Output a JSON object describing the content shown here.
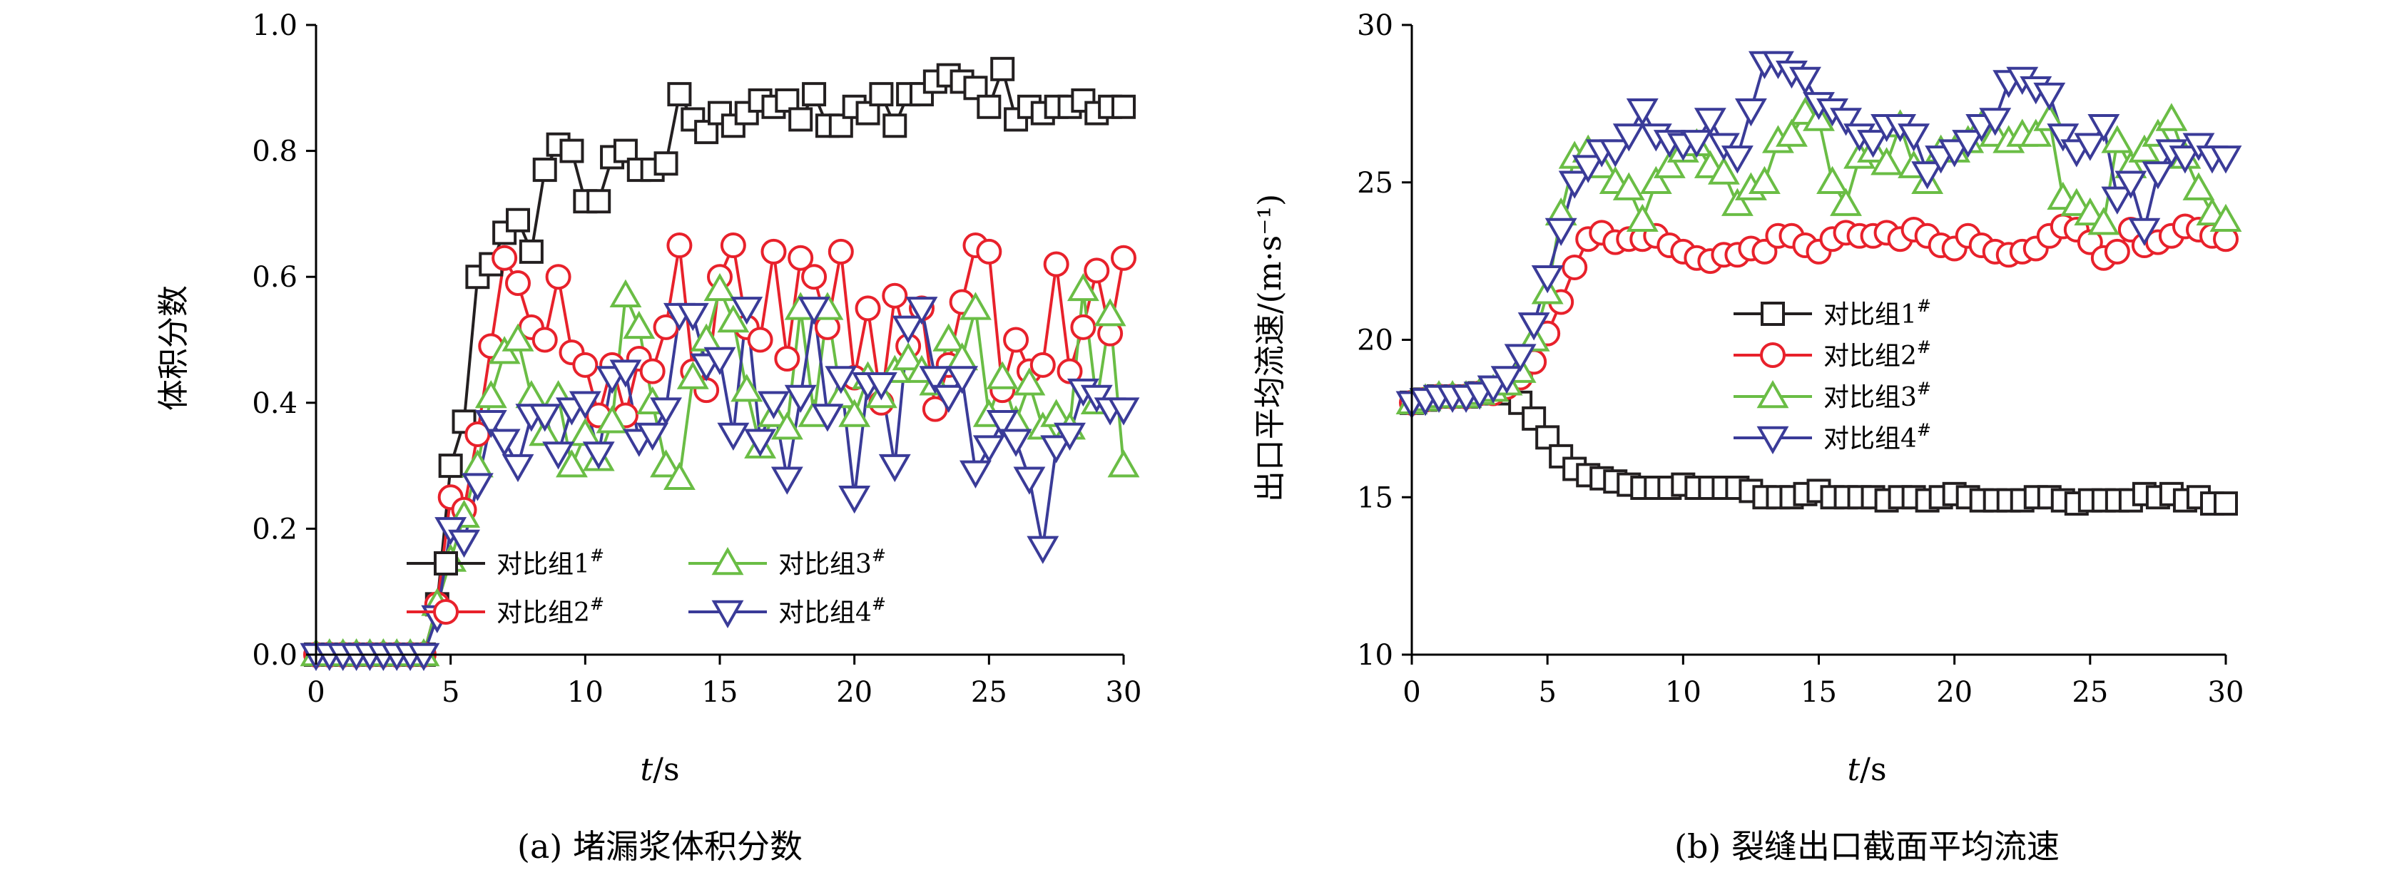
{
  "chart_data": [
    {
      "type": "line",
      "caption": "(a) 堵漏浆体积分数",
      "xlabel_italic": "t",
      "xlabel_unit": "/s",
      "ylabel": "体积分数",
      "xlim": [
        0,
        30
      ],
      "ylim": [
        0,
        1.0
      ],
      "xticks": [
        "0",
        "5",
        "10",
        "15",
        "20",
        "25",
        "30"
      ],
      "yticks": [
        "0.0",
        "0.2",
        "0.4",
        "0.6",
        "0.8",
        "1.0"
      ],
      "legend_position": "bottom-center",
      "grid": false,
      "series": [
        {
          "name": "对比组1",
          "sup": "#",
          "color": "#231f20",
          "marker": "square",
          "x": [
            0,
            0.5,
            1,
            1.5,
            2,
            2.5,
            3,
            3.5,
            4,
            4.5,
            5,
            5.5,
            6,
            6.5,
            7,
            7.5,
            8,
            8.5,
            9,
            9.5,
            10,
            10.5,
            11,
            11.5,
            12,
            12.5,
            13,
            13.5,
            14,
            14.5,
            15,
            15.5,
            16,
            16.5,
            17,
            17.5,
            18,
            18.5,
            19,
            19.5,
            20,
            20.5,
            21,
            21.5,
            22,
            22.5,
            23,
            23.5,
            24,
            24.5,
            25,
            25.5,
            26,
            26.5,
            27,
            27.5,
            28,
            28.5,
            29,
            29.5,
            30
          ],
          "y": [
            0,
            0,
            0,
            0,
            0,
            0,
            0,
            0,
            0,
            0.08,
            0.3,
            0.37,
            0.6,
            0.62,
            0.67,
            0.69,
            0.64,
            0.77,
            0.81,
            0.8,
            0.72,
            0.72,
            0.79,
            0.8,
            0.77,
            0.77,
            0.78,
            0.89,
            0.85,
            0.83,
            0.86,
            0.84,
            0.86,
            0.88,
            0.87,
            0.88,
            0.85,
            0.89,
            0.84,
            0.84,
            0.87,
            0.86,
            0.89,
            0.84,
            0.89,
            0.89,
            0.91,
            0.92,
            0.91,
            0.9,
            0.87,
            0.93,
            0.85,
            0.87,
            0.86,
            0.87,
            0.87,
            0.88,
            0.86,
            0.87,
            0.87
          ]
        },
        {
          "name": "对比组2",
          "sup": "#",
          "color": "#e8212b",
          "marker": "circle",
          "x": [
            0,
            0.5,
            1,
            1.5,
            2,
            2.5,
            3,
            3.5,
            4,
            4.5,
            5,
            5.5,
            6,
            6.5,
            7,
            7.5,
            8,
            8.5,
            9,
            9.5,
            10,
            10.5,
            11,
            11.5,
            12,
            12.5,
            13,
            13.5,
            14,
            14.5,
            15,
            15.5,
            16,
            16.5,
            17,
            17.5,
            18,
            18.5,
            19,
            19.5,
            20,
            20.5,
            21,
            21.5,
            22,
            22.5,
            23,
            23.5,
            24,
            24.5,
            25,
            25.5,
            26,
            26.5,
            27,
            27.5,
            28,
            28.5,
            29,
            29.5,
            30
          ],
          "y": [
            0,
            0,
            0,
            0,
            0,
            0,
            0,
            0,
            0,
            0.08,
            0.25,
            0.23,
            0.35,
            0.49,
            0.63,
            0.59,
            0.52,
            0.5,
            0.6,
            0.48,
            0.46,
            0.38,
            0.46,
            0.38,
            0.47,
            0.45,
            0.52,
            0.65,
            0.45,
            0.42,
            0.6,
            0.65,
            0.52,
            0.5,
            0.64,
            0.47,
            0.63,
            0.6,
            0.52,
            0.64,
            0.44,
            0.55,
            0.4,
            0.57,
            0.49,
            0.55,
            0.39,
            0.46,
            0.56,
            0.65,
            0.64,
            0.42,
            0.5,
            0.45,
            0.46,
            0.62,
            0.45,
            0.52,
            0.61,
            0.51,
            0.63
          ]
        },
        {
          "name": "对比组3",
          "sup": "#",
          "color": "#6abd45",
          "marker": "triangle-up",
          "x": [
            0,
            0.5,
            1,
            1.5,
            2,
            2.5,
            3,
            3.5,
            4,
            4.5,
            5,
            5.5,
            6,
            6.5,
            7,
            7.5,
            8,
            8.5,
            9,
            9.5,
            10,
            10.5,
            11,
            11.5,
            12,
            12.5,
            13,
            13.5,
            14,
            14.5,
            15,
            15.5,
            16,
            16.5,
            17,
            17.5,
            18,
            18.5,
            19,
            19.5,
            20,
            20.5,
            21,
            21.5,
            22,
            22.5,
            23,
            23.5,
            24,
            24.5,
            25,
            25.5,
            26,
            26.5,
            27,
            27.5,
            28,
            28.5,
            29,
            29.5,
            30
          ],
          "y": [
            0,
            0,
            0,
            0,
            0,
            0,
            0,
            0,
            0,
            0.08,
            0.15,
            0.22,
            0.3,
            0.41,
            0.48,
            0.5,
            0.41,
            0.35,
            0.41,
            0.3,
            0.35,
            0.31,
            0.37,
            0.57,
            0.52,
            0.4,
            0.3,
            0.28,
            0.44,
            0.5,
            0.58,
            0.53,
            0.42,
            0.33,
            0.38,
            0.36,
            0.55,
            0.38,
            0.55,
            0.41,
            0.38,
            0.44,
            0.41,
            0.45,
            0.47,
            0.45,
            0.43,
            0.5,
            0.47,
            0.55,
            0.38,
            0.44,
            0.37,
            0.43,
            0.36,
            0.38,
            0.36,
            0.58,
            0.4,
            0.54,
            0.3
          ]
        },
        {
          "name": "对比组4",
          "sup": "#",
          "color": "#3a3b98",
          "marker": "triangle-down",
          "x": [
            0,
            0.5,
            1,
            1.5,
            2,
            2.5,
            3,
            3.5,
            4,
            4.5,
            5,
            5.5,
            6,
            6.5,
            7,
            7.5,
            8,
            8.5,
            9,
            9.5,
            10,
            10.5,
            11,
            11.5,
            12,
            12.5,
            13,
            13.5,
            14,
            14.5,
            15,
            15.5,
            16,
            16.5,
            17,
            17.5,
            18,
            18.5,
            19,
            19.5,
            20,
            20.5,
            21,
            21.5,
            22,
            22.5,
            23,
            23.5,
            24,
            24.5,
            25,
            25.5,
            26,
            26.5,
            27,
            27.5,
            28,
            28.5,
            29,
            29.5,
            30
          ],
          "y": [
            0,
            0,
            0,
            0,
            0,
            0,
            0,
            0,
            0,
            0.06,
            0.2,
            0.18,
            0.27,
            0.37,
            0.34,
            0.3,
            0.38,
            0.38,
            0.32,
            0.39,
            0.4,
            0.32,
            0.44,
            0.45,
            0.34,
            0.35,
            0.39,
            0.54,
            0.54,
            0.46,
            0.47,
            0.35,
            0.55,
            0.34,
            0.4,
            0.28,
            0.41,
            0.55,
            0.38,
            0.44,
            0.25,
            0.43,
            0.43,
            0.3,
            0.52,
            0.55,
            0.44,
            0.41,
            0.44,
            0.29,
            0.33,
            0.37,
            0.34,
            0.28,
            0.17,
            0.33,
            0.35,
            0.42,
            0.41,
            0.39,
            0.39
          ]
        }
      ]
    },
    {
      "type": "line",
      "caption": "(b) 裂缝出口截面平均流速",
      "xlabel_italic": "t",
      "xlabel_unit": "/s",
      "ylabel": "出口平均流速/(m·s⁻¹)",
      "xlim": [
        0,
        30
      ],
      "ylim": [
        10,
        30
      ],
      "xticks": [
        "0",
        "5",
        "10",
        "15",
        "20",
        "25",
        "30"
      ],
      "yticks": [
        "10",
        "15",
        "20",
        "25",
        "30"
      ],
      "legend_position": "center-right",
      "grid": false,
      "series": [
        {
          "name": "对比组1",
          "sup": "#",
          "color": "#231f20",
          "marker": "square",
          "x": [
            0,
            0.5,
            1,
            1.5,
            2,
            2.5,
            3,
            3.5,
            4,
            4.5,
            5,
            5.5,
            6,
            6.5,
            7,
            7.5,
            8,
            8.5,
            9,
            9.5,
            10,
            10.5,
            11,
            11.5,
            12,
            12.5,
            13,
            13.5,
            14,
            14.5,
            15,
            15.5,
            16,
            16.5,
            17,
            17.5,
            18,
            18.5,
            19,
            19.5,
            20,
            20.5,
            21,
            21.5,
            22,
            22.5,
            23,
            23.5,
            24,
            24.5,
            25,
            25.5,
            26,
            26.5,
            27,
            27.5,
            28,
            28.5,
            29,
            29.5,
            30
          ],
          "y": [
            18,
            18.1,
            18.2,
            18.2,
            18.2,
            18.3,
            18.4,
            18.3,
            18,
            17.5,
            16.9,
            16.3,
            15.9,
            15.7,
            15.6,
            15.5,
            15.4,
            15.3,
            15.3,
            15.3,
            15.4,
            15.3,
            15.3,
            15.3,
            15.3,
            15.2,
            15,
            15,
            15,
            15.1,
            15.2,
            15,
            15,
            15,
            15,
            14.9,
            15,
            15,
            14.9,
            15,
            15.1,
            15,
            14.9,
            14.9,
            14.9,
            14.9,
            15,
            15,
            14.9,
            14.8,
            14.9,
            14.9,
            14.9,
            14.9,
            15.1,
            15,
            15.1,
            14.9,
            15,
            14.8,
            14.8
          ]
        },
        {
          "name": "对比组2",
          "sup": "#",
          "color": "#e8212b",
          "marker": "circle",
          "x": [
            0,
            0.5,
            1,
            1.5,
            2,
            2.5,
            3,
            3.5,
            4,
            4.5,
            5,
            5.5,
            6,
            6.5,
            7,
            7.5,
            8,
            8.5,
            9,
            9.5,
            10,
            10.5,
            11,
            11.5,
            12,
            12.5,
            13,
            13.5,
            14,
            14.5,
            15,
            15.5,
            16,
            16.5,
            17,
            17.5,
            18,
            18.5,
            19,
            19.5,
            20,
            20.5,
            21,
            21.5,
            22,
            22.5,
            23,
            23.5,
            24,
            24.5,
            25,
            25.5,
            26,
            26.5,
            27,
            27.5,
            28,
            28.5,
            29,
            29.5,
            30
          ],
          "y": [
            18,
            18.1,
            18.2,
            18.2,
            18.2,
            18.3,
            18.3,
            18.5,
            18.8,
            19.3,
            20.2,
            21.2,
            22.3,
            23.2,
            23.4,
            23.1,
            23.2,
            23.2,
            23.3,
            23,
            22.8,
            22.6,
            22.5,
            22.7,
            22.7,
            22.9,
            22.8,
            23.3,
            23.3,
            23,
            22.8,
            23.2,
            23.4,
            23.3,
            23.3,
            23.4,
            23.2,
            23.5,
            23.3,
            23,
            22.9,
            23.3,
            23,
            22.8,
            22.7,
            22.8,
            22.9,
            23.3,
            23.6,
            23.5,
            23.1,
            22.6,
            22.8,
            23.5,
            23,
            23.1,
            23.3,
            23.6,
            23.5,
            23.3,
            23.2
          ]
        },
        {
          "name": "对比组3",
          "sup": "#",
          "color": "#6abd45",
          "marker": "triangle-up",
          "x": [
            0,
            0.5,
            1,
            1.5,
            2,
            2.5,
            3,
            3.5,
            4,
            4.5,
            5,
            5.5,
            6,
            6.5,
            7,
            7.5,
            8,
            8.5,
            9,
            9.5,
            10,
            10.5,
            11,
            11.5,
            12,
            12.5,
            13,
            13.5,
            14,
            14.5,
            15,
            15.5,
            16,
            16.5,
            17,
            17.5,
            18,
            18.5,
            19,
            19.5,
            20,
            20.5,
            21,
            21.5,
            22,
            22.5,
            23,
            23.5,
            24,
            24.5,
            25,
            25.5,
            26,
            26.5,
            27,
            27.5,
            28,
            28.5,
            29,
            29.5,
            30
          ],
          "y": [
            18,
            18.1,
            18.2,
            18.2,
            18.2,
            18.3,
            18.4,
            18.6,
            19,
            20,
            21.5,
            24,
            25.8,
            26,
            25.5,
            25,
            24.8,
            23.8,
            25,
            25.5,
            26,
            26.2,
            25.5,
            25.3,
            24.3,
            24.8,
            25,
            26.3,
            26.5,
            27.2,
            27,
            25,
            24.3,
            25.8,
            26,
            25.6,
            26.8,
            25.5,
            25,
            26,
            26,
            26.3,
            26.8,
            26.5,
            26.3,
            26.5,
            26.5,
            27,
            24.5,
            24.3,
            24,
            23.7,
            26.3,
            25.5,
            26,
            26.5,
            27,
            25.8,
            24.8,
            24,
            23.8
          ]
        },
        {
          "name": "对比组4",
          "sup": "#",
          "color": "#3a3b98",
          "marker": "triangle-down",
          "x": [
            0,
            0.5,
            1,
            1.5,
            2,
            2.5,
            3,
            3.5,
            4,
            4.5,
            5,
            5.5,
            6,
            6.5,
            7,
            7.5,
            8,
            8.5,
            9,
            9.5,
            10,
            10.5,
            11,
            11.5,
            12,
            12.5,
            13,
            13.5,
            14,
            14.5,
            15,
            15.5,
            16,
            16.5,
            17,
            17.5,
            18,
            18.5,
            19,
            19.5,
            20,
            20.5,
            21,
            21.5,
            22,
            22.5,
            23,
            23.5,
            24,
            24.5,
            25,
            25.5,
            26,
            26.5,
            27,
            27.5,
            28,
            28.5,
            29,
            29.5,
            30
          ],
          "y": [
            18,
            18.1,
            18.2,
            18.2,
            18.2,
            18.3,
            18.5,
            18.8,
            19.5,
            20.5,
            22,
            23.5,
            25,
            25.5,
            26,
            26,
            26.5,
            27.3,
            26.5,
            26.3,
            26.2,
            26.3,
            27,
            26.2,
            25.8,
            27.3,
            28.8,
            28.8,
            28.5,
            28.3,
            27.5,
            27.3,
            27,
            26.5,
            26.3,
            26.8,
            26.8,
            26.5,
            25.3,
            25.8,
            26,
            26.3,
            26.8,
            27,
            28.2,
            28.3,
            28,
            27.8,
            26.5,
            26,
            26.2,
            26.8,
            24.5,
            25,
            23.5,
            25.3,
            26,
            25.8,
            26.2,
            25.8,
            25.8
          ]
        }
      ]
    }
  ]
}
